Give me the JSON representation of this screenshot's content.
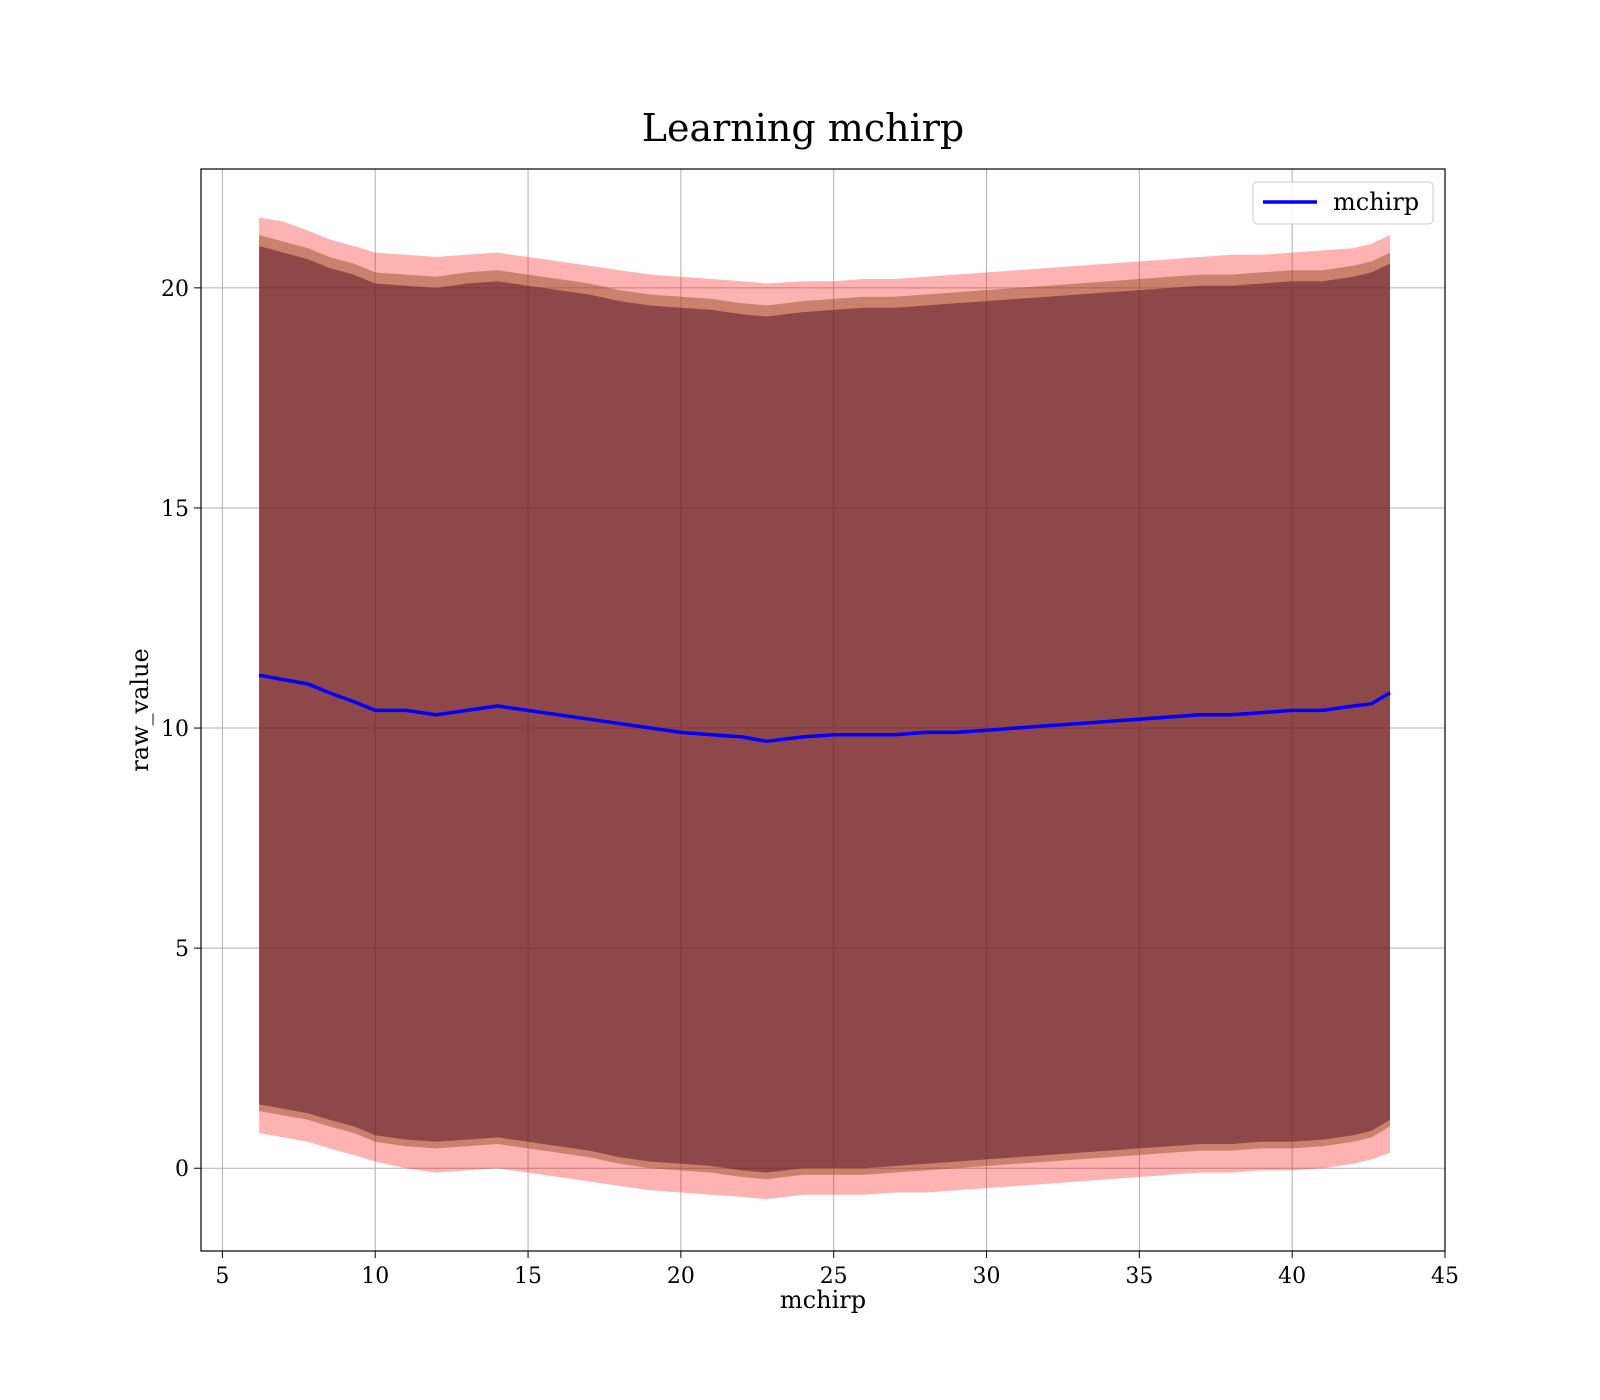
{
  "chart_data": {
    "type": "area",
    "title": "Learning mchirp",
    "xlabel": "mchirp",
    "ylabel": "raw_value",
    "xlim": [
      4.3,
      45
    ],
    "ylim": [
      -1.88,
      22.7
    ],
    "xticks": [
      5,
      10,
      15,
      20,
      25,
      30,
      35,
      40,
      45
    ],
    "yticks": [
      0,
      5,
      10,
      15,
      20
    ],
    "grid": true,
    "legend": {
      "position": "upper right",
      "entries": [
        "mchirp"
      ]
    },
    "colors": {
      "line": "#0000ff",
      "outer_band": "#ff0000",
      "mid_band": "#8b4513",
      "inner_band": "#5c1a2e"
    },
    "x": [
      6.2,
      7.0,
      7.8,
      8.5,
      9.3,
      10.0,
      11.0,
      12.0,
      13.0,
      14.0,
      15.0,
      16.0,
      17.0,
      18.0,
      19.0,
      20.0,
      21.0,
      22.0,
      22.8,
      24.0,
      25.0,
      26.0,
      27.0,
      28.0,
      29.0,
      30.0,
      31.0,
      32.0,
      33.0,
      34.0,
      35.0,
      36.0,
      37.0,
      38.0,
      39.0,
      40.0,
      41.0,
      42.0,
      42.6,
      43.2
    ],
    "series": [
      {
        "name": "mchirp",
        "role": "line",
        "values": [
          11.2,
          11.1,
          11.0,
          10.8,
          10.6,
          10.4,
          10.4,
          10.3,
          10.4,
          10.5,
          10.4,
          10.3,
          10.2,
          10.1,
          10.0,
          9.9,
          9.85,
          9.8,
          9.7,
          9.8,
          9.85,
          9.85,
          9.85,
          9.9,
          9.9,
          9.95,
          10.0,
          10.05,
          10.1,
          10.15,
          10.2,
          10.25,
          10.3,
          10.3,
          10.35,
          10.4,
          10.4,
          10.5,
          10.55,
          10.8
        ]
      },
      {
        "role": "outer_band",
        "lower": [
          0.8,
          0.7,
          0.6,
          0.45,
          0.3,
          0.15,
          0.0,
          -0.1,
          -0.05,
          0.0,
          -0.1,
          -0.2,
          -0.3,
          -0.4,
          -0.5,
          -0.55,
          -0.6,
          -0.65,
          -0.7,
          -0.6,
          -0.6,
          -0.6,
          -0.55,
          -0.55,
          -0.5,
          -0.45,
          -0.4,
          -0.35,
          -0.3,
          -0.25,
          -0.2,
          -0.15,
          -0.1,
          -0.1,
          -0.05,
          -0.05,
          0.0,
          0.1,
          0.2,
          0.35
        ],
        "upper": [
          21.6,
          21.5,
          21.3,
          21.1,
          20.95,
          20.8,
          20.75,
          20.7,
          20.75,
          20.8,
          20.7,
          20.6,
          20.5,
          20.4,
          20.3,
          20.25,
          20.2,
          20.15,
          20.1,
          20.15,
          20.15,
          20.2,
          20.2,
          20.25,
          20.3,
          20.35,
          20.4,
          20.45,
          20.5,
          20.55,
          20.6,
          20.65,
          20.7,
          20.75,
          20.75,
          20.8,
          20.85,
          20.9,
          21.0,
          21.2
        ]
      },
      {
        "role": "mid_band",
        "lower": [
          1.3,
          1.2,
          1.1,
          0.95,
          0.8,
          0.6,
          0.5,
          0.45,
          0.5,
          0.55,
          0.45,
          0.35,
          0.25,
          0.1,
          0.0,
          -0.05,
          -0.1,
          -0.2,
          -0.25,
          -0.15,
          -0.15,
          -0.15,
          -0.1,
          -0.05,
          0.0,
          0.05,
          0.1,
          0.15,
          0.2,
          0.25,
          0.3,
          0.35,
          0.4,
          0.4,
          0.45,
          0.45,
          0.5,
          0.6,
          0.7,
          0.95
        ],
        "upper": [
          21.2,
          21.05,
          20.9,
          20.7,
          20.55,
          20.35,
          20.3,
          20.25,
          20.35,
          20.4,
          20.3,
          20.2,
          20.1,
          19.95,
          19.85,
          19.8,
          19.75,
          19.65,
          19.6,
          19.7,
          19.75,
          19.8,
          19.8,
          19.85,
          19.9,
          19.95,
          20.0,
          20.05,
          20.1,
          20.15,
          20.2,
          20.25,
          20.3,
          20.3,
          20.35,
          20.4,
          20.4,
          20.5,
          20.6,
          20.8
        ]
      },
      {
        "role": "inner_band",
        "lower": [
          1.45,
          1.35,
          1.25,
          1.1,
          0.95,
          0.75,
          0.65,
          0.6,
          0.65,
          0.7,
          0.6,
          0.5,
          0.4,
          0.25,
          0.15,
          0.1,
          0.05,
          -0.05,
          -0.1,
          0.0,
          0.0,
          0.0,
          0.05,
          0.1,
          0.15,
          0.2,
          0.25,
          0.3,
          0.35,
          0.4,
          0.45,
          0.5,
          0.55,
          0.55,
          0.6,
          0.6,
          0.65,
          0.75,
          0.85,
          1.1
        ],
        "upper": [
          20.95,
          20.8,
          20.65,
          20.45,
          20.3,
          20.1,
          20.05,
          20.0,
          20.1,
          20.15,
          20.05,
          19.95,
          19.85,
          19.7,
          19.6,
          19.55,
          19.5,
          19.4,
          19.35,
          19.45,
          19.5,
          19.55,
          19.55,
          19.6,
          19.65,
          19.7,
          19.75,
          19.8,
          19.85,
          19.9,
          19.95,
          20.0,
          20.05,
          20.05,
          20.1,
          20.15,
          20.15,
          20.25,
          20.35,
          20.55
        ]
      }
    ]
  }
}
